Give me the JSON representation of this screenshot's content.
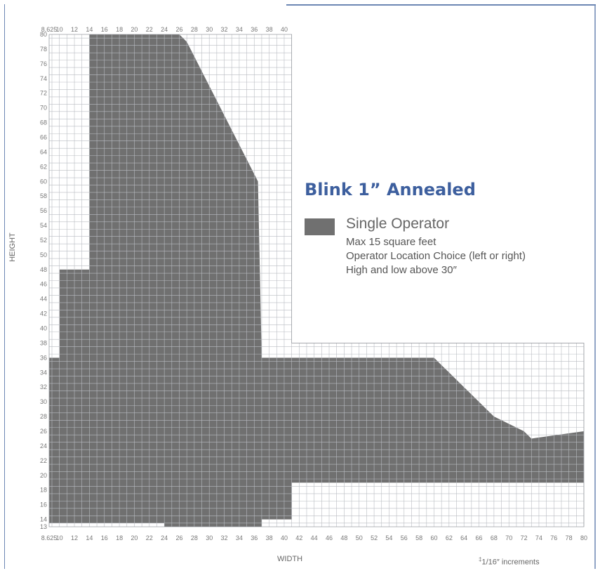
{
  "chart_data": {
    "type": "heatmap",
    "title": "Blink 1” Annealed",
    "xlabel": "WIDTH",
    "ylabel": "HEIGHT",
    "x_ticks_top": [
      "8.625",
      "10",
      "12",
      "14",
      "16",
      "18",
      "20",
      "22",
      "24",
      "26",
      "28",
      "30",
      "32",
      "34",
      "36",
      "38",
      "40"
    ],
    "x_ticks_bottom": [
      "8.625",
      "10",
      "12",
      "14",
      "16",
      "18",
      "20",
      "22",
      "24",
      "26",
      "28",
      "30",
      "32",
      "34",
      "36",
      "38",
      "40",
      "42",
      "44",
      "46",
      "48",
      "50",
      "52",
      "54",
      "56",
      "58",
      "60",
      "62",
      "64",
      "66",
      "68",
      "70",
      "72",
      "74",
      "76",
      "78",
      "80"
    ],
    "y_ticks": [
      "13",
      "14",
      "16",
      "18",
      "20",
      "22",
      "24",
      "26",
      "28",
      "30",
      "32",
      "34",
      "36",
      "38",
      "40",
      "42",
      "44",
      "46",
      "48",
      "50",
      "52",
      "54",
      "56",
      "58",
      "60",
      "62",
      "64",
      "66",
      "68",
      "70",
      "72",
      "74",
      "76",
      "78",
      "80"
    ],
    "xlim": [
      8.625,
      80
    ],
    "ylim": [
      13,
      80
    ],
    "grid": true,
    "legend": [
      {
        "name": "Single Operator",
        "color": "#707070"
      }
    ],
    "notes": [
      "Max 15 square feet",
      "Operator Location Choice (left or right)",
      "High and low above 30″"
    ],
    "footnote_mark": "‡",
    "footnote": "1/16″ increments",
    "region_edges_comment": "",
    "shaded_profile_left": [
      [
        13,
        24
      ],
      [
        14,
        8.625
      ],
      [
        36,
        8.625
      ],
      [
        37,
        10
      ],
      [
        48,
        10
      ],
      [
        49,
        14
      ],
      [
        80,
        14
      ]
    ],
    "shaded_profile_top": [
      [
        14,
        48
      ],
      [
        10,
        48
      ],
      [
        10,
        36
      ],
      [
        8.625,
        36
      ]
    ],
    "profile_right": [
      [
        26,
        80
      ],
      [
        27,
        79
      ],
      [
        28,
        77
      ],
      [
        29,
        75
      ],
      [
        30,
        73
      ],
      [
        31,
        71
      ],
      [
        32,
        69
      ],
      [
        33,
        67
      ],
      [
        34,
        65
      ],
      [
        35,
        63
      ],
      [
        36,
        61
      ],
      [
        36.5,
        60
      ],
      [
        37,
        36
      ],
      [
        60,
        36
      ],
      [
        61,
        35
      ],
      [
        62,
        34
      ],
      [
        63,
        33
      ],
      [
        64,
        32
      ],
      [
        65,
        31
      ],
      [
        66,
        30
      ],
      [
        67,
        29
      ],
      [
        68,
        28
      ],
      [
        70,
        27
      ],
      [
        72,
        26
      ],
      [
        73,
        25
      ],
      [
        80,
        26
      ],
      [
        80,
        19
      ]
    ],
    "profile_bottom": [
      [
        80,
        19
      ],
      [
        41,
        19
      ],
      [
        41,
        14
      ],
      [
        37,
        14
      ],
      [
        37,
        13
      ],
      [
        24,
        13
      ]
    ]
  }
}
